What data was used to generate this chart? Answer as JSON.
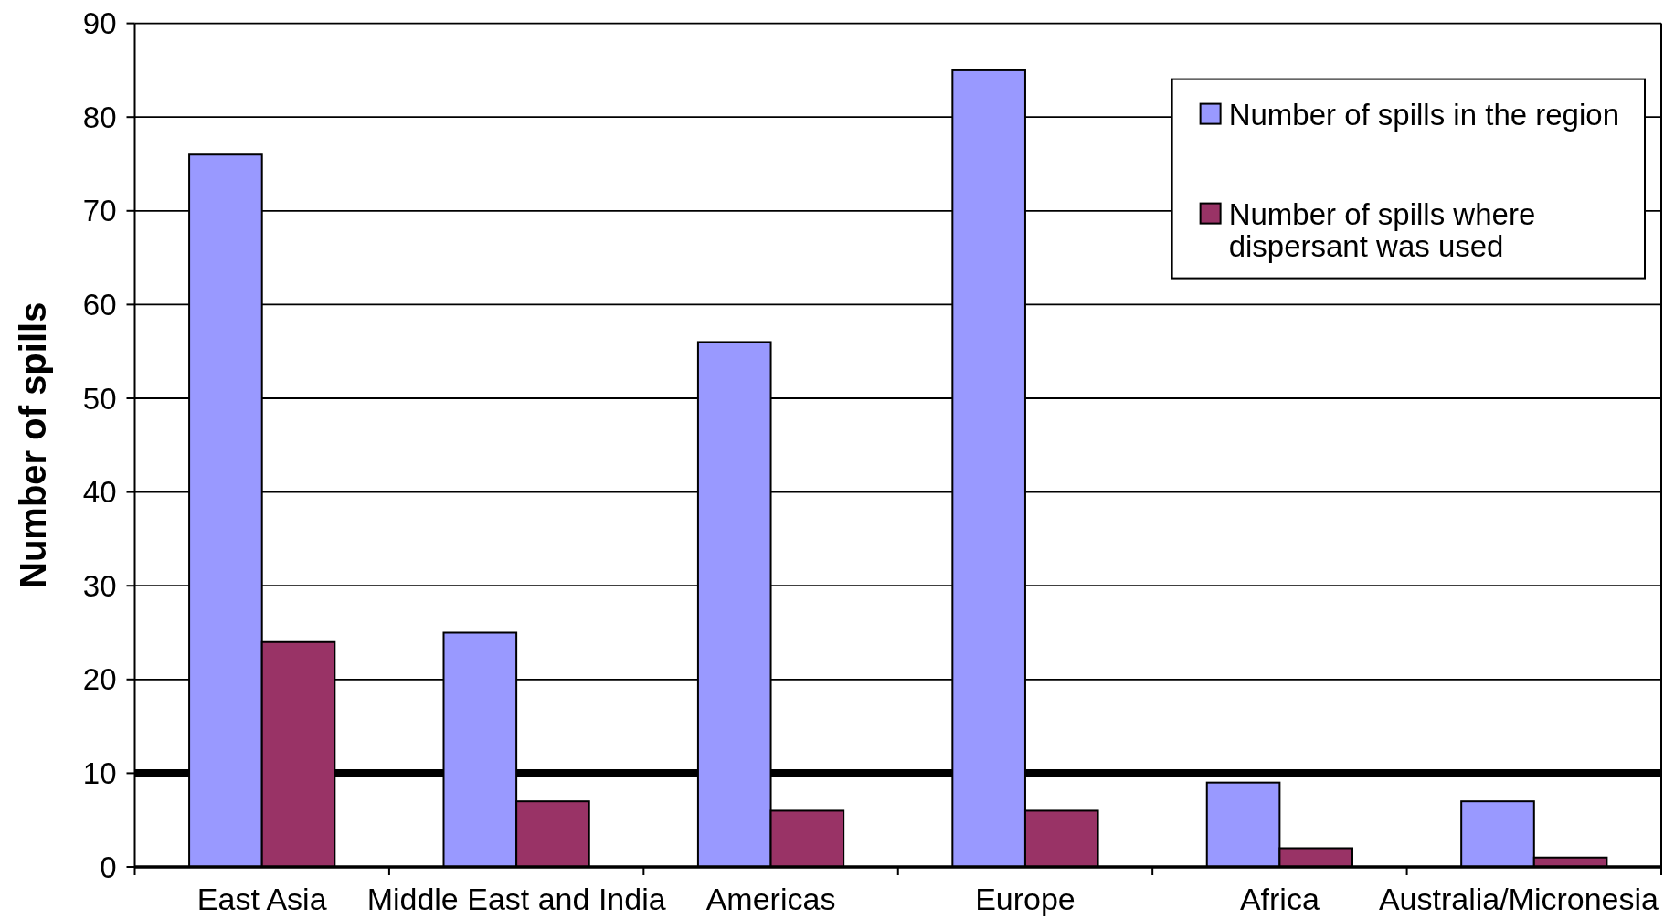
{
  "chart_data": {
    "type": "bar",
    "ylabel": "Number of spills",
    "categories": [
      "East Asia",
      "Middle East and India",
      "Americas",
      "Europe",
      "Africa",
      "Australia/Micronesia"
    ],
    "series": [
      {
        "name": "Number of spills in the region",
        "color": "#9999ff",
        "values": [
          76,
          25,
          56,
          85,
          9,
          7
        ]
      },
      {
        "name": "Number of spills where dispersant was used",
        "color": "#993366",
        "values": [
          24,
          7,
          6,
          6,
          2,
          1
        ]
      }
    ],
    "ylim": [
      0,
      90
    ],
    "yticks": [
      0,
      10,
      20,
      30,
      40,
      50,
      60,
      70,
      80,
      90
    ],
    "grid": "y",
    "legend": "top right",
    "ref_lines": [
      {
        "axis": "y",
        "value": 10,
        "color": "#000000"
      }
    ]
  }
}
